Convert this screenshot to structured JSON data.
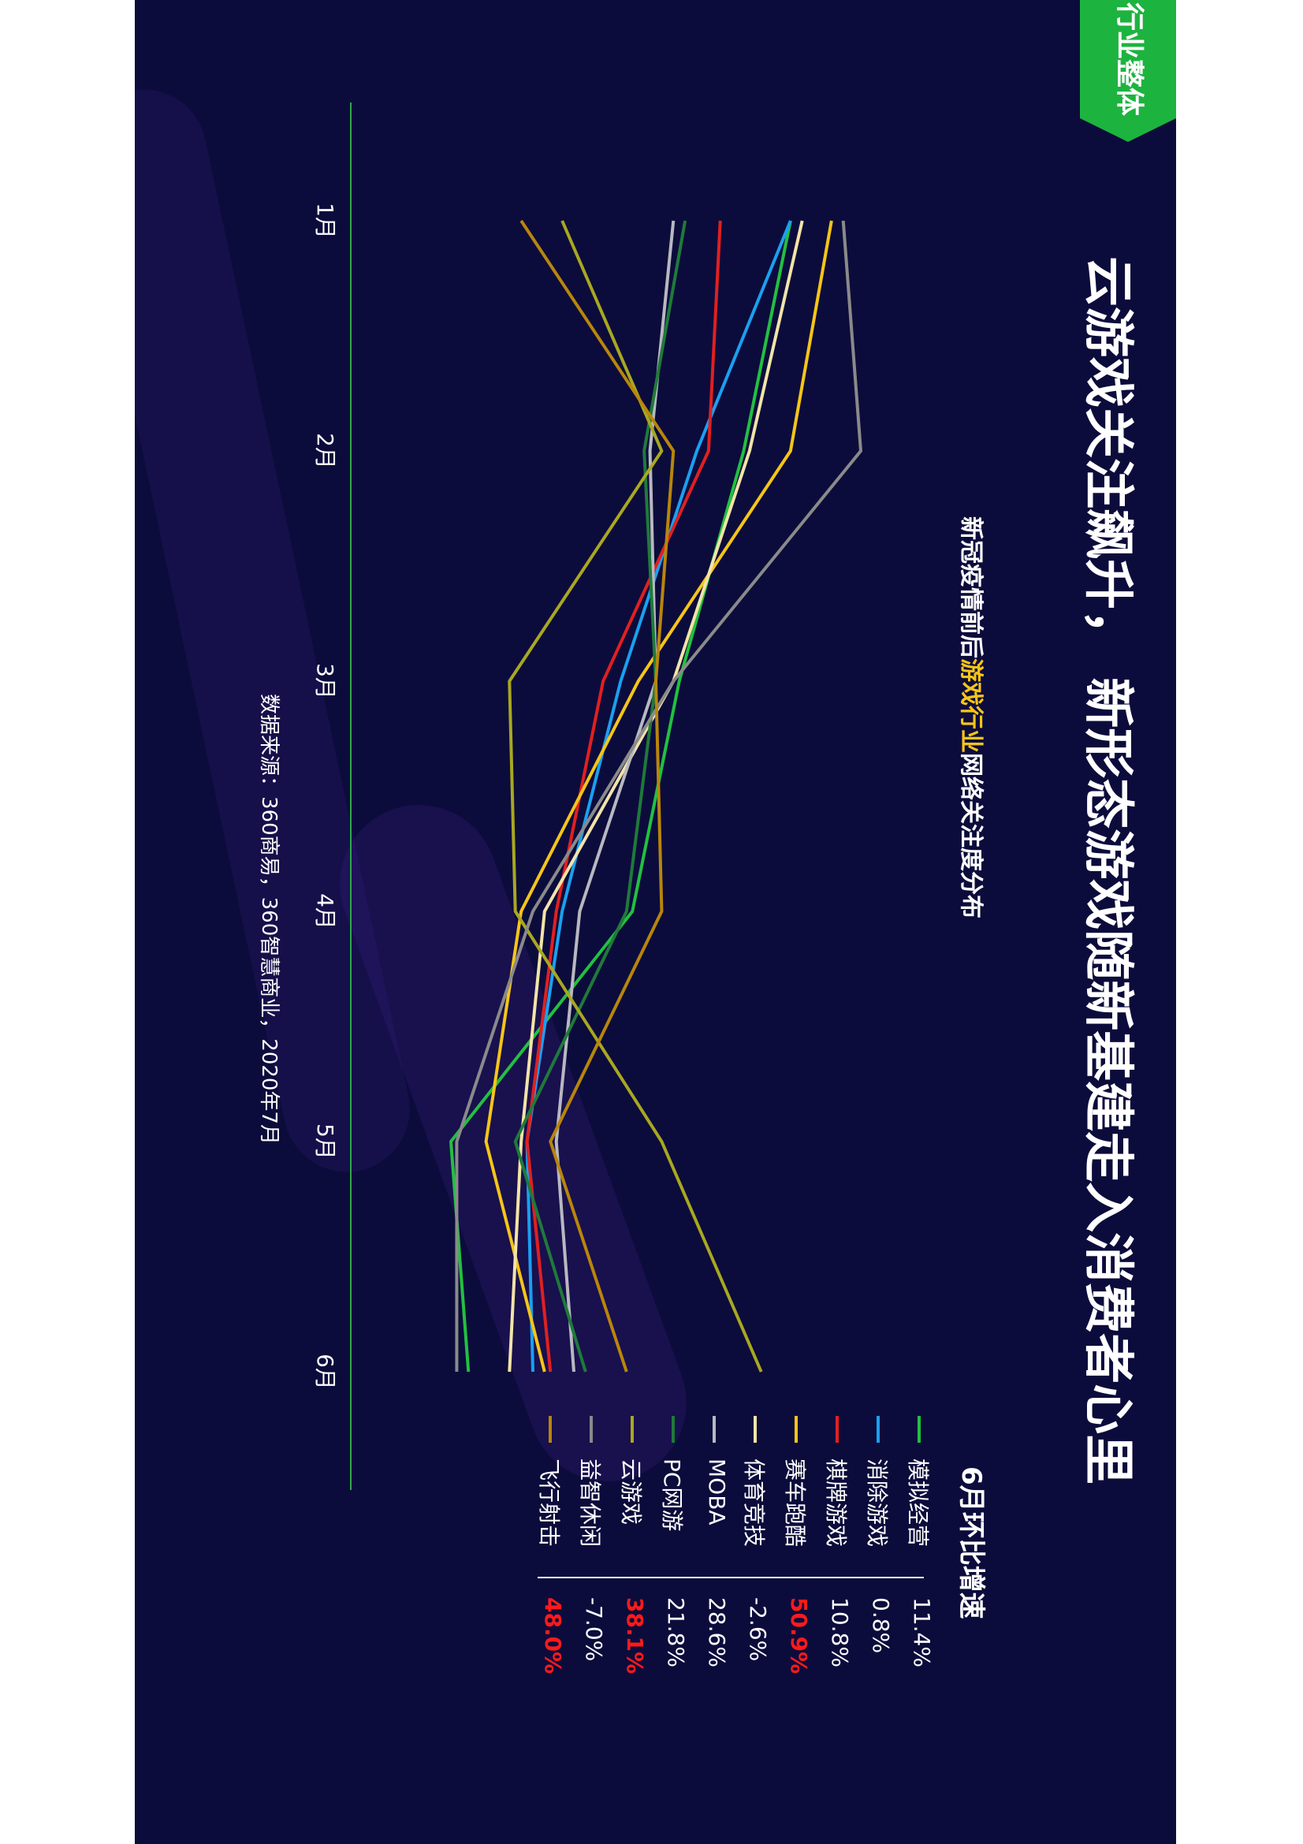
{
  "badge": {
    "label": "行业整体",
    "color": "#1db33f"
  },
  "title": "云游戏关注飙升， 新形态游戏随新基建走入消费者心里",
  "subtitle": {
    "prefix": "新冠疫情前后",
    "highlight": "游戏行业",
    "suffix": "网络关注度分布"
  },
  "table_title": "6月环比增速",
  "source": "数据来源：360商易，360智慧商业，2020年7月",
  "chart_data": {
    "type": "line",
    "title": "新冠疫情前后游戏行业网络关注度分布",
    "x": [
      "1月",
      "2月",
      "3月",
      "4月",
      "5月",
      "6月"
    ],
    "xlabel": "",
    "ylabel": "",
    "grid": false,
    "legend_placement": "right",
    "series": [
      {
        "name": "模拟经营",
        "color": "#22c040",
        "values": [
          58,
          50,
          39,
          31,
          0,
          3
        ],
        "mom_growth": "11.4%"
      },
      {
        "name": "消除游戏",
        "color": "#1aa0f0",
        "values": [
          58,
          42,
          29,
          19,
          13,
          14
        ],
        "mom_growth": "0.8%"
      },
      {
        "name": "棋牌游戏",
        "color": "#e02020",
        "values": [
          46,
          44,
          26,
          18,
          13,
          17
        ],
        "mom_growth": "10.8%"
      },
      {
        "name": "赛车跑酷",
        "color": "#f5c518",
        "values": [
          65,
          58,
          32,
          12,
          6,
          16
        ],
        "mom_growth": "50.9%"
      },
      {
        "name": "体育竞技",
        "color": "#f2e4a8",
        "values": [
          60,
          51,
          38,
          16,
          12,
          10
        ],
        "mom_growth": "-2.6%"
      },
      {
        "name": "MOBA",
        "color": "#b8b8c0",
        "values": [
          38,
          34,
          35,
          22,
          18,
          21
        ],
        "mom_growth": "28.6%"
      },
      {
        "name": "PC网游",
        "color": "#1f7a3a",
        "values": [
          40,
          33,
          35,
          30,
          11,
          23
        ],
        "mom_growth": "21.8%"
      },
      {
        "name": "云游戏",
        "color": "#a8a820",
        "values": [
          19,
          36,
          10,
          11,
          36,
          53
        ],
        "mom_growth": "38.1%"
      },
      {
        "name": "益智休闲",
        "color": "#8a8a8a",
        "values": [
          67,
          70,
          38,
          14,
          1,
          1
        ],
        "mom_growth": "-7.0%"
      },
      {
        "name": "飞行射击",
        "color": "#b8860b",
        "values": [
          12,
          38,
          35,
          36,
          17,
          30
        ],
        "mom_growth": "48.0%"
      }
    ],
    "highlight_growth": [
      "赛车跑酷",
      "云游戏",
      "飞行射击"
    ],
    "highlight_color": "#ff1a1a"
  }
}
